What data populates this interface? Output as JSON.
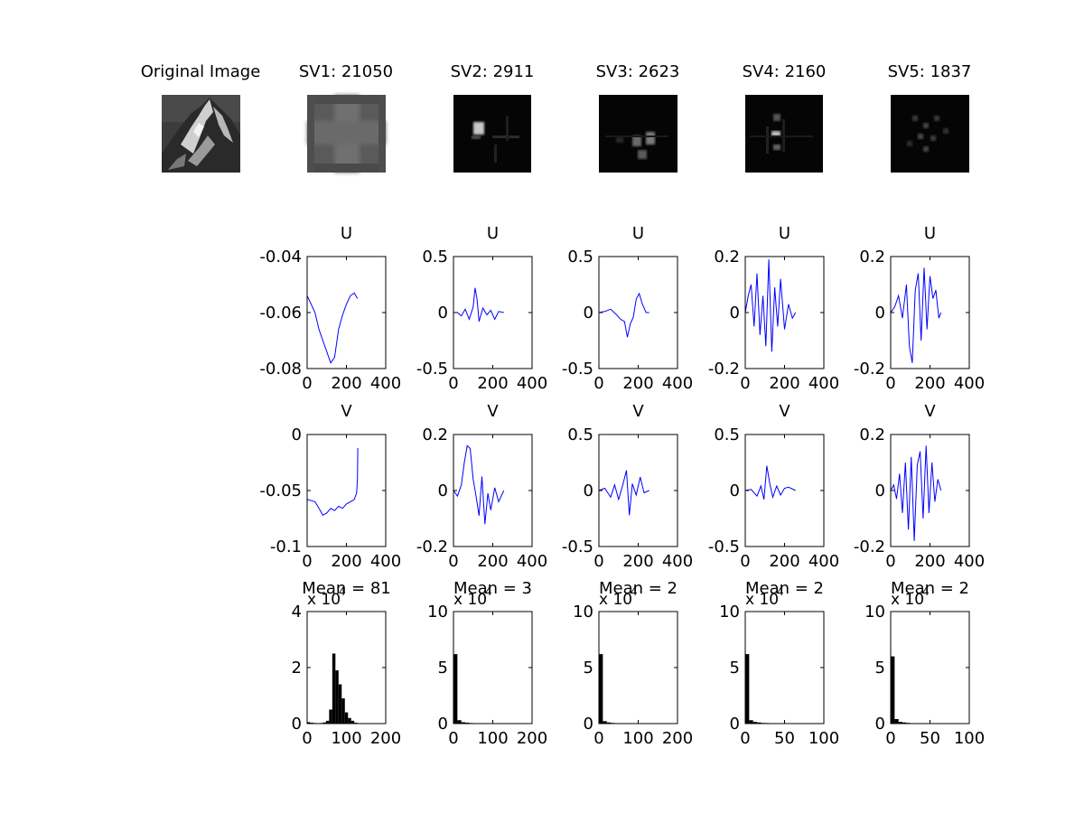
{
  "figure": {
    "image_titles": [
      "Original Image",
      "SV1: 21050",
      "SV2: 2911",
      "SV3: 2623",
      "SV4: 2160",
      "SV5: 1837"
    ],
    "line_color": "#0000ff",
    "hist_color": "#000000"
  },
  "chart_data": [
    {
      "panel": "u1",
      "type": "line",
      "title": "U",
      "xlim": [
        0,
        400
      ],
      "ylim": [
        -0.08,
        -0.04
      ],
      "xticks": [
        "0",
        "200",
        "400"
      ],
      "yticks": [
        "-0.04",
        "-0.06",
        "-0.08"
      ],
      "x": [
        0,
        20,
        40,
        60,
        80,
        100,
        120,
        140,
        160,
        180,
        200,
        220,
        240,
        256
      ],
      "y": [
        -0.054,
        -0.057,
        -0.06,
        -0.066,
        -0.07,
        -0.074,
        -0.078,
        -0.076,
        -0.066,
        -0.061,
        -0.057,
        -0.054,
        -0.053,
        -0.055
      ]
    },
    {
      "panel": "u2",
      "type": "line",
      "title": "U",
      "xlim": [
        0,
        400
      ],
      "ylim": [
        -0.5,
        0.5
      ],
      "xticks": [
        "0",
        "200",
        "400"
      ],
      "yticks": [
        "0.5",
        "0",
        "-0.5"
      ],
      "x": [
        0,
        20,
        40,
        60,
        80,
        100,
        110,
        120,
        130,
        150,
        170,
        190,
        210,
        230,
        256
      ],
      "y": [
        0.0,
        0.0,
        -0.03,
        0.03,
        -0.06,
        0.05,
        0.22,
        0.12,
        -0.08,
        0.04,
        -0.02,
        0.02,
        -0.06,
        0.01,
        0.0
      ]
    },
    {
      "panel": "u3",
      "type": "line",
      "title": "U",
      "xlim": [
        0,
        400
      ],
      "ylim": [
        -0.5,
        0.5
      ],
      "xticks": [
        "0",
        "200",
        "400"
      ],
      "yticks": [
        "0.5",
        "0",
        "-0.5"
      ],
      "x": [
        0,
        30,
        60,
        90,
        110,
        130,
        145,
        160,
        175,
        190,
        205,
        220,
        240,
        256
      ],
      "y": [
        0.0,
        0.01,
        0.03,
        -0.02,
        -0.06,
        -0.08,
        -0.22,
        -0.1,
        -0.04,
        0.12,
        0.17,
        0.08,
        0.0,
        0.0
      ]
    },
    {
      "panel": "u4",
      "type": "line",
      "title": "U",
      "xlim": [
        0,
        400
      ],
      "ylim": [
        -0.2,
        0.2
      ],
      "xticks": [
        "0",
        "200",
        "400"
      ],
      "yticks": [
        "0.2",
        "0",
        "-0.2"
      ],
      "x": [
        0,
        15,
        30,
        45,
        60,
        75,
        90,
        105,
        120,
        135,
        150,
        165,
        180,
        200,
        220,
        240,
        256
      ],
      "y": [
        0.0,
        0.06,
        0.1,
        -0.05,
        0.14,
        -0.08,
        0.06,
        -0.12,
        0.19,
        -0.14,
        0.09,
        -0.05,
        0.12,
        -0.06,
        0.03,
        -0.02,
        0.0
      ]
    },
    {
      "panel": "u5",
      "type": "line",
      "title": "U",
      "xlim": [
        0,
        400
      ],
      "ylim": [
        -0.2,
        0.2
      ],
      "xticks": [
        "0",
        "200",
        "400"
      ],
      "yticks": [
        "0.2",
        "0",
        "-0.2"
      ],
      "x": [
        0,
        20,
        40,
        60,
        80,
        95,
        110,
        125,
        140,
        155,
        170,
        185,
        200,
        215,
        230,
        245,
        256
      ],
      "y": [
        0.0,
        0.02,
        0.06,
        -0.02,
        0.1,
        -0.12,
        -0.18,
        0.08,
        0.14,
        -0.1,
        0.16,
        -0.06,
        0.13,
        0.05,
        0.08,
        -0.02,
        0.0
      ]
    },
    {
      "panel": "v1",
      "type": "line",
      "title": "V",
      "xlim": [
        0,
        400
      ],
      "ylim": [
        -0.1,
        0
      ],
      "xticks": [
        "0",
        "200",
        "400"
      ],
      "yticks": [
        "0",
        "-0.05",
        "-0.1"
      ],
      "x": [
        0,
        20,
        40,
        60,
        80,
        100,
        120,
        140,
        160,
        180,
        200,
        220,
        240,
        252,
        256,
        258
      ],
      "y": [
        -0.058,
        -0.059,
        -0.06,
        -0.066,
        -0.072,
        -0.07,
        -0.066,
        -0.068,
        -0.064,
        -0.066,
        -0.062,
        -0.06,
        -0.058,
        -0.052,
        -0.04,
        -0.012
      ]
    },
    {
      "panel": "v2",
      "type": "line",
      "title": "V",
      "xlim": [
        0,
        400
      ],
      "ylim": [
        -0.2,
        0.2
      ],
      "xticks": [
        "0",
        "200",
        "400"
      ],
      "yticks": [
        "0.2",
        "0",
        "-0.2"
      ],
      "x": [
        0,
        20,
        40,
        55,
        70,
        85,
        100,
        115,
        130,
        145,
        160,
        175,
        190,
        210,
        230,
        256
      ],
      "y": [
        0.0,
        -0.02,
        0.02,
        0.1,
        0.16,
        0.15,
        0.04,
        -0.02,
        -0.09,
        0.05,
        -0.12,
        -0.01,
        -0.07,
        0.01,
        -0.04,
        0.0
      ]
    },
    {
      "panel": "v3",
      "type": "line",
      "title": "V",
      "xlim": [
        0,
        400
      ],
      "ylim": [
        -0.5,
        0.5
      ],
      "xticks": [
        "0",
        "200",
        "400"
      ],
      "yticks": [
        "0.5",
        "0",
        "-0.5"
      ],
      "x": [
        0,
        30,
        60,
        80,
        100,
        120,
        140,
        155,
        170,
        190,
        210,
        230,
        256
      ],
      "y": [
        0.0,
        0.02,
        -0.06,
        0.05,
        -0.08,
        0.04,
        0.18,
        -0.22,
        0.06,
        -0.04,
        0.12,
        -0.02,
        0.0
      ]
    },
    {
      "panel": "v4",
      "type": "line",
      "title": "V",
      "xlim": [
        0,
        400
      ],
      "ylim": [
        -0.5,
        0.5
      ],
      "xticks": [
        "0",
        "200",
        "400"
      ],
      "yticks": [
        "0.5",
        "0",
        "-0.5"
      ],
      "x": [
        0,
        30,
        60,
        80,
        95,
        110,
        125,
        140,
        160,
        180,
        200,
        220,
        256
      ],
      "y": [
        0.0,
        0.01,
        -0.05,
        0.04,
        -0.08,
        0.22,
        0.06,
        -0.06,
        0.04,
        -0.04,
        0.02,
        0.03,
        0.0
      ]
    },
    {
      "panel": "v5",
      "type": "line",
      "title": "V",
      "xlim": [
        0,
        400
      ],
      "ylim": [
        -0.2,
        0.2
      ],
      "xticks": [
        "0",
        "200",
        "400"
      ],
      "yticks": [
        "0.2",
        "0",
        "-0.2"
      ],
      "x": [
        0,
        15,
        30,
        45,
        60,
        75,
        90,
        105,
        120,
        135,
        150,
        165,
        180,
        195,
        210,
        225,
        240,
        256
      ],
      "y": [
        0.0,
        0.02,
        -0.03,
        0.06,
        -0.08,
        0.1,
        -0.14,
        0.12,
        -0.18,
        0.09,
        0.14,
        -0.1,
        0.16,
        -0.08,
        0.1,
        -0.04,
        0.04,
        0.0
      ]
    },
    {
      "panel": "h1",
      "type": "bar",
      "title": "Mean = 81",
      "exponent": "x 10",
      "xlim": [
        0,
        200
      ],
      "ylim": [
        0,
        4
      ],
      "xticks": [
        "0",
        "100",
        "200"
      ],
      "yticks": [
        "4",
        "2",
        "0"
      ],
      "bin_width": 8,
      "bin_left": [
        0,
        8,
        16,
        24,
        32,
        40,
        48,
        56,
        64,
        72,
        80,
        88,
        96,
        104,
        112,
        120
      ],
      "values": [
        0.05,
        0.03,
        0.02,
        0.01,
        0.02,
        0.04,
        0.1,
        0.5,
        2.5,
        1.9,
        1.4,
        0.9,
        0.4,
        0.2,
        0.1,
        0.03
      ]
    },
    {
      "panel": "h2",
      "type": "bar",
      "title": "Mean = 3",
      "exponent": "x 10",
      "xlim": [
        0,
        200
      ],
      "ylim": [
        0,
        10
      ],
      "xticks": [
        "0",
        "100",
        "200"
      ],
      "yticks": [
        "10",
        "5",
        "0"
      ],
      "bin_width": 10,
      "bin_left": [
        0,
        10,
        20,
        30,
        40,
        50,
        60,
        70,
        80
      ],
      "values": [
        6.2,
        0.3,
        0.12,
        0.08,
        0.05,
        0.03,
        0.02,
        0.01,
        0.01
      ]
    },
    {
      "panel": "h3",
      "type": "bar",
      "title": "Mean = 2",
      "exponent": "x 10",
      "xlim": [
        0,
        200
      ],
      "ylim": [
        0,
        10
      ],
      "xticks": [
        "0",
        "100",
        "200"
      ],
      "yticks": [
        "10",
        "5",
        "0"
      ],
      "bin_width": 10,
      "bin_left": [
        0,
        10,
        20,
        30,
        40,
        50,
        60,
        70,
        80,
        90,
        100
      ],
      "values": [
        6.2,
        0.22,
        0.1,
        0.06,
        0.04,
        0.03,
        0.02,
        0.02,
        0.01,
        0.01,
        0.01
      ]
    },
    {
      "panel": "h4",
      "type": "bar",
      "title": "Mean = 2",
      "exponent": "x 10",
      "xlim": [
        0,
        100
      ],
      "ylim": [
        0,
        10
      ],
      "xticks": [
        "0",
        "50",
        "100"
      ],
      "yticks": [
        "10",
        "5",
        "0"
      ],
      "bin_width": 5,
      "bin_left": [
        0,
        5,
        10,
        15,
        20,
        25,
        30,
        35,
        40,
        45,
        50,
        55,
        60,
        65,
        70,
        75,
        80
      ],
      "values": [
        6.2,
        0.3,
        0.15,
        0.1,
        0.06,
        0.05,
        0.04,
        0.03,
        0.03,
        0.02,
        0.02,
        0.02,
        0.02,
        0.01,
        0.01,
        0.01,
        0.01
      ]
    },
    {
      "panel": "h5",
      "type": "bar",
      "title": "Mean = 2",
      "exponent": "x 10",
      "xlim": [
        0,
        100
      ],
      "ylim": [
        0,
        10
      ],
      "xticks": [
        "0",
        "50",
        "100"
      ],
      "yticks": [
        "10",
        "5",
        "0"
      ],
      "bin_width": 5,
      "bin_left": [
        0,
        5,
        10,
        15,
        20,
        25,
        30,
        35,
        40,
        45,
        50
      ],
      "values": [
        6.0,
        0.4,
        0.15,
        0.1,
        0.06,
        0.04,
        0.03,
        0.03,
        0.02,
        0.02,
        0.01
      ]
    }
  ]
}
